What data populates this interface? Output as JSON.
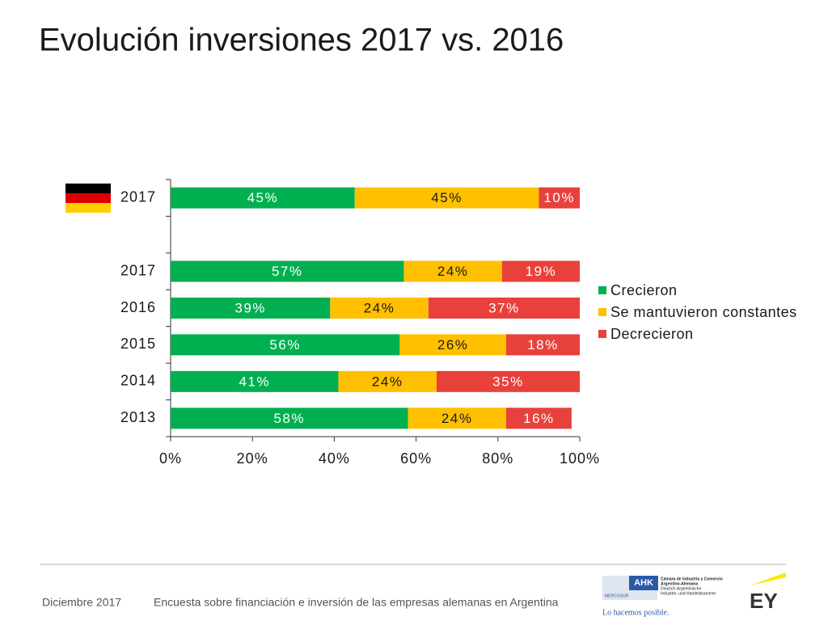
{
  "chart_data": {
    "type": "stacked-barh",
    "title": "Evolución inversiones 2017 vs. 2016",
    "categories": [
      "2017",
      null,
      "2017",
      "2016",
      "2015",
      "2014",
      "2013"
    ],
    "series": [
      {
        "name": "Crecieron",
        "color": "#00b050",
        "values": [
          45,
          null,
          57,
          39,
          56,
          41,
          58
        ],
        "value_labels": [
          "45%",
          null,
          "57%",
          "39%",
          "56%",
          "41%",
          "58%"
        ]
      },
      {
        "name": "Se mantuvieron constantes",
        "color": "#ffc000",
        "values": [
          45,
          null,
          24,
          24,
          26,
          24,
          24
        ],
        "value_labels": [
          "45%",
          null,
          "24%",
          "24%",
          "26%",
          "24%",
          "24%"
        ]
      },
      {
        "name": "Decrecieron",
        "color": "#e8413c",
        "values": [
          10,
          null,
          19,
          37,
          18,
          35,
          16
        ],
        "value_labels": [
          "10%",
          null,
          "19%",
          "37%",
          "18%",
          "35%",
          "16%"
        ]
      }
    ],
    "xlim": [
      0,
      100
    ],
    "xticks": [
      {
        "value": 0,
        "label": "0%"
      },
      {
        "value": 20,
        "label": "20%"
      },
      {
        "value": 40,
        "label": "40%"
      },
      {
        "value": 60,
        "label": "60%"
      },
      {
        "value": 80,
        "label": "80%"
      },
      {
        "value": 100,
        "label": "100%"
      }
    ],
    "legend": "right"
  },
  "footer": {
    "date": "Diciembre 2017",
    "text": "Encuesta sobre financiación e inversión de las empresas alemanas en Argentina",
    "ahk": {
      "mark": "AHK",
      "mercosur": "MERCOSUR",
      "lines": [
        "Cámara de Industria y Comercio",
        "Argentino-Alemana",
        "Deutsch-Argentinische",
        "Industrie- und Handelskammer"
      ],
      "slogan": "Lo hacemos posible."
    },
    "ey": "EY"
  }
}
